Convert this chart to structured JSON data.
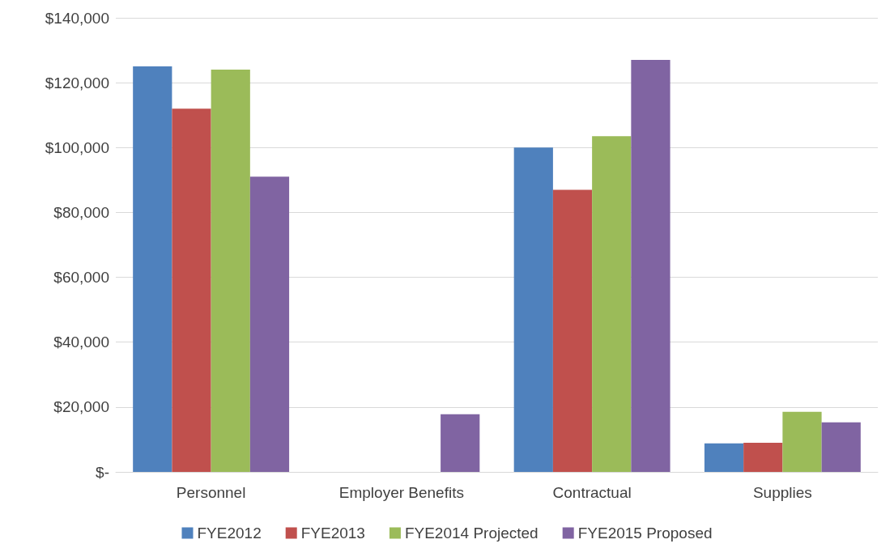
{
  "chart_data": {
    "type": "bar",
    "categories": [
      "Personnel",
      "Employer Benefits",
      "Contractual",
      "Supplies"
    ],
    "series": [
      {
        "name": "FYE2012",
        "color": "#4f81bd",
        "values": [
          125000,
          0,
          100000,
          8800
        ]
      },
      {
        "name": "FYE2013",
        "color": "#c0504d",
        "values": [
          112000,
          0,
          87000,
          9000
        ]
      },
      {
        "name": "FYE2014 Projected",
        "color": "#9bbb59",
        "values": [
          124000,
          0,
          103500,
          18500
        ]
      },
      {
        "name": "FYE2015 Proposed",
        "color": "#8064a2",
        "values": [
          91000,
          17800,
          127000,
          15300
        ]
      }
    ],
    "ylim": [
      0,
      140000
    ],
    "yticks": [
      {
        "value": 0,
        "label": "$-"
      },
      {
        "value": 20000,
        "label": "$20,000"
      },
      {
        "value": 40000,
        "label": "$40,000"
      },
      {
        "value": 60000,
        "label": "$60,000"
      },
      {
        "value": 80000,
        "label": "$80,000"
      },
      {
        "value": 100000,
        "label": "$100,000"
      },
      {
        "value": 120000,
        "label": "$120,000"
      },
      {
        "value": 140000,
        "label": "$140,000"
      }
    ],
    "grid": "y",
    "legend": "bottom"
  }
}
